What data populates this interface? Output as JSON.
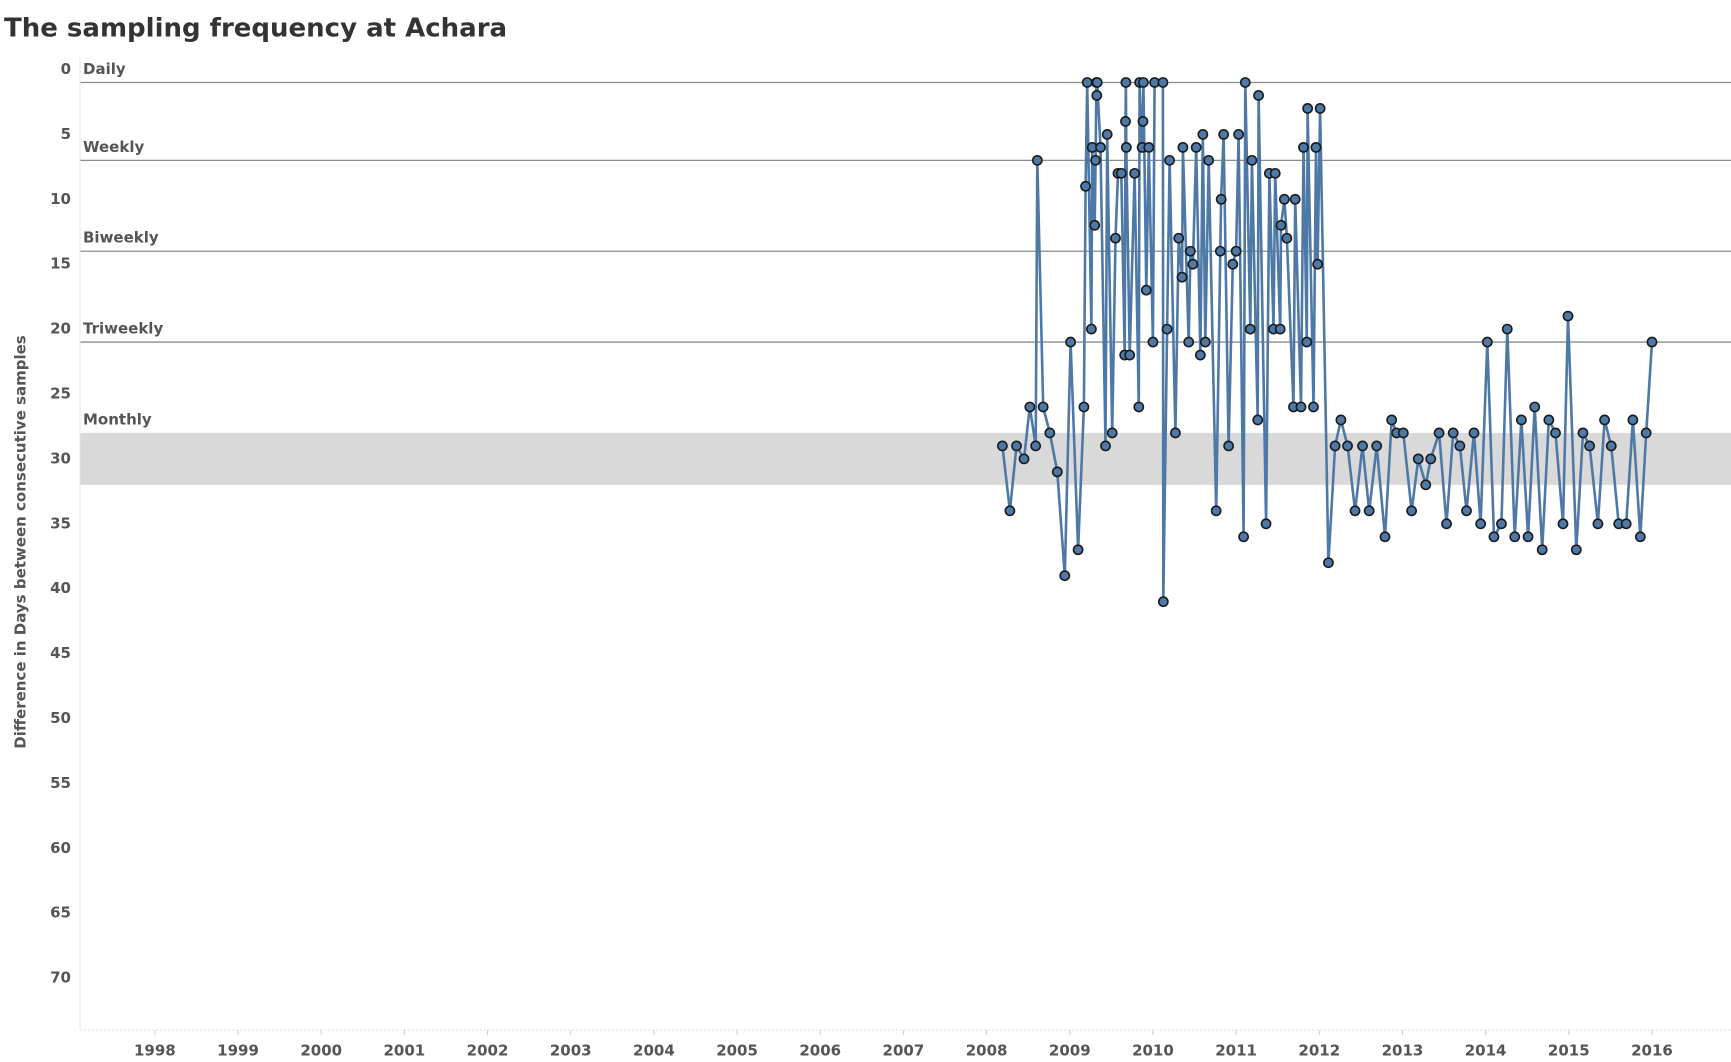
{
  "chart_data": {
    "type": "line",
    "title": "The sampling frequency at Achara",
    "y_label": "Difference in Days between consecutive samples",
    "x": [
      2008.19,
      2008.28,
      2008.36,
      2008.45,
      2008.52,
      2008.59,
      2008.61,
      2008.68,
      2008.76,
      2008.85,
      2008.94,
      2009.01,
      2009.1,
      2009.17,
      2009.19,
      2009.21,
      2009.26,
      2009.27,
      2009.3,
      2009.31,
      2009.32,
      2009.325,
      2009.33,
      2009.37,
      2009.43,
      2009.45,
      2009.51,
      2009.55,
      2009.58,
      2009.62,
      2009.66,
      2009.67,
      2009.675,
      2009.68,
      2009.72,
      2009.78,
      2009.83,
      2009.84,
      2009.87,
      2009.88,
      2009.885,
      2009.92,
      2009.95,
      2010.0,
      2010.02,
      2010.12,
      2010.125,
      2010.17,
      2010.2,
      2010.27,
      2010.31,
      2010.35,
      2010.36,
      2010.43,
      2010.45,
      2010.48,
      2010.52,
      2010.57,
      2010.6,
      2010.63,
      2010.67,
      2010.76,
      2010.81,
      2010.82,
      2010.85,
      2010.91,
      2010.96,
      2011.0,
      2011.03,
      2011.09,
      2011.11,
      2011.17,
      2011.19,
      2011.26,
      2011.27,
      2011.36,
      2011.4,
      2011.45,
      2011.47,
      2011.53,
      2011.54,
      2011.58,
      2011.61,
      2011.69,
      2011.71,
      2011.78,
      2011.81,
      2011.85,
      2011.86,
      2011.93,
      2011.96,
      2011.98,
      2012.01,
      2012.11,
      2012.19,
      2012.26,
      2012.34,
      2012.43,
      2012.52,
      2012.6,
      2012.69,
      2012.79,
      2012.87,
      2012.93,
      2013.01,
      2013.11,
      2013.19,
      2013.28,
      2013.34,
      2013.44,
      2013.53,
      2013.61,
      2013.69,
      2013.77,
      2013.86,
      2013.94,
      2014.02,
      2014.1,
      2014.19,
      2014.26,
      2014.35,
      2014.43,
      2014.51,
      2014.59,
      2014.68,
      2014.76,
      2014.84,
      2014.93,
      2014.99,
      2015.09,
      2015.17,
      2015.25,
      2015.35,
      2015.43,
      2015.51,
      2015.6,
      2015.69,
      2015.77,
      2015.86,
      2015.93,
      2016.0
    ],
    "series": [
      {
        "color": "#4e79a7",
        "values": [
          29,
          34,
          29,
          30,
          26,
          29,
          7,
          26,
          28,
          31,
          39,
          21,
          37,
          26,
          9,
          1,
          20,
          6,
          12,
          7,
          1,
          2,
          1,
          6,
          29,
          5,
          28,
          13,
          8,
          8,
          22,
          4,
          1,
          6,
          22,
          8,
          26,
          1,
          6,
          4,
          1,
          17,
          6,
          21,
          1,
          1,
          41,
          20,
          7,
          28,
          13,
          16,
          6,
          21,
          14,
          15,
          6,
          22,
          5,
          21,
          7,
          34,
          14,
          10,
          5,
          29,
          15,
          14,
          5,
          36,
          1,
          20,
          7,
          27,
          2,
          35,
          8,
          20,
          8,
          20,
          12,
          10,
          13,
          26,
          10,
          26,
          6,
          21,
          3,
          26,
          6,
          15,
          3,
          38,
          29,
          27,
          29,
          34,
          29,
          34,
          29,
          36,
          27,
          28,
          28,
          34,
          30,
          32,
          30,
          28,
          35,
          28,
          29,
          34,
          28,
          35,
          21,
          36,
          35,
          20,
          36,
          27,
          36,
          26,
          37,
          27,
          28,
          35,
          19,
          37,
          28,
          29,
          35,
          27,
          29,
          35,
          35,
          27,
          36,
          28,
          21
        ]
      }
    ],
    "xlim": [
      1997.1,
      2016.95
    ],
    "xticks": [
      1998,
      1999,
      2000,
      2001,
      2002,
      2003,
      2004,
      2005,
      2006,
      2007,
      2008,
      2009,
      2010,
      2011,
      2012,
      2013,
      2014,
      2015,
      2016
    ],
    "ylim": [
      0,
      74
    ],
    "yticks": [
      0,
      5,
      10,
      15,
      20,
      25,
      30,
      35,
      40,
      45,
      50,
      55,
      60,
      65,
      70
    ],
    "y_inverted": true,
    "reference_lines": [
      {
        "label": "Daily",
        "value": 1
      },
      {
        "label": "Weekly",
        "value": 7
      },
      {
        "label": "Biweekly",
        "value": 14
      },
      {
        "label": "Triweekly",
        "value": 21
      }
    ],
    "reference_line_color": "#8c8c8c",
    "reference_band": {
      "label": "Monthly",
      "range": [
        28,
        32
      ],
      "color": "#d9d9d9"
    }
  }
}
